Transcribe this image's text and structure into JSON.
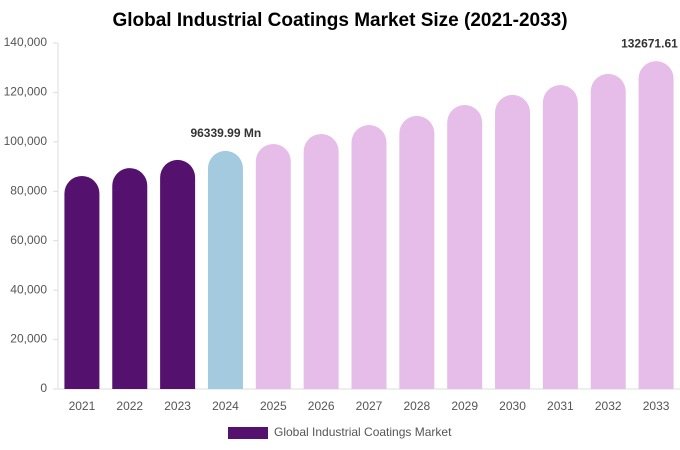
{
  "chart_data": {
    "type": "bar",
    "title": "Global Industrial Coatings Market Size (2021-2033)",
    "categories": [
      "2021",
      "2022",
      "2023",
      "2024",
      "2025",
      "2026",
      "2027",
      "2028",
      "2029",
      "2030",
      "2031",
      "2032",
      "2033"
    ],
    "series": [
      {
        "name": "Global Industrial Coatings Market",
        "color": "#54126e",
        "values": [
          86200,
          89400,
          92700,
          96339.99,
          99150,
          103200,
          106800,
          110500,
          114900,
          119000,
          123000,
          127500,
          132671.61
        ],
        "colors": [
          "#54126e",
          "#54126e",
          "#54126e",
          "#a3cadf",
          "#e6bde9",
          "#e6bde9",
          "#e6bde9",
          "#e6bde9",
          "#e6bde9",
          "#e6bde9",
          "#e6bde9",
          "#e6bde9",
          "#e6bde9"
        ],
        "value_labels": [
          null,
          null,
          null,
          "96339.99 Mn",
          null,
          null,
          null,
          null,
          null,
          null,
          null,
          null,
          "132671.61 Mn"
        ]
      }
    ],
    "ylim": [
      0,
      140000
    ],
    "yticks": [
      0,
      {
        "value": 20000,
        "label": "20,000"
      },
      {
        "value": 40000,
        "label": "40,000"
      },
      {
        "value": 60000,
        "label": "60,000"
      },
      {
        "value": 80000,
        "label": "80,000"
      },
      {
        "value": 100000,
        "label": "100,000"
      },
      {
        "value": 120000,
        "label": "120,000"
      },
      {
        "value": 140000,
        "label": "140,000"
      }
    ],
    "legend": "bottom"
  }
}
